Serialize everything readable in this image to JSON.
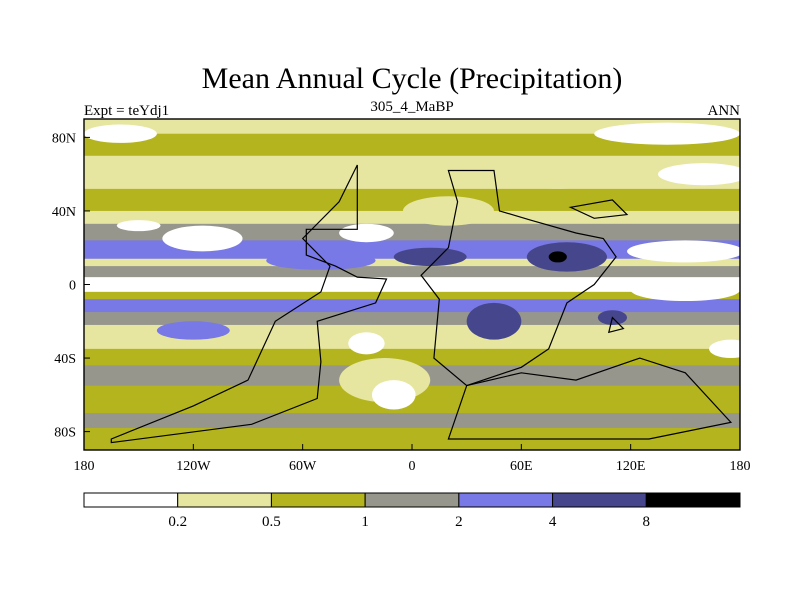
{
  "chart_data": {
    "type": "heatmap",
    "title": "Mean Annual Cycle (Precipitation)",
    "left_label": "Expt = teYdj1",
    "center_label": "305_4_MaBP",
    "right_label": "ANN",
    "x_ticks": [
      {
        "value": -180,
        "label": "180"
      },
      {
        "value": -120,
        "label": "120W"
      },
      {
        "value": -60,
        "label": "60W"
      },
      {
        "value": 0,
        "label": "0"
      },
      {
        "value": 60,
        "label": "60E"
      },
      {
        "value": 120,
        "label": "120E"
      },
      {
        "value": 180,
        "label": "180"
      }
    ],
    "y_ticks": [
      {
        "value": 80,
        "label": "80N"
      },
      {
        "value": 40,
        "label": "40N"
      },
      {
        "value": 0,
        "label": "0"
      },
      {
        "value": -40,
        "label": "40S"
      },
      {
        "value": -80,
        "label": "80S"
      }
    ],
    "xlim": [
      -180,
      180
    ],
    "ylim": [
      -90,
      90
    ],
    "levels": [
      0.2,
      0.5,
      1,
      2,
      4,
      8
    ],
    "colors": [
      "#ffffff",
      "#e6e6a0",
      "#b4b41e",
      "#96968c",
      "#7878e6",
      "#46468c",
      "#000000"
    ],
    "border_color": "#000000",
    "zonal_bands": [
      {
        "lat_top": 90,
        "lat_bottom": 82,
        "class": 1
      },
      {
        "lat_top": 82,
        "lat_bottom": 70,
        "class": 2
      },
      {
        "lat_top": 70,
        "lat_bottom": 52,
        "class": 1
      },
      {
        "lat_top": 52,
        "lat_bottom": 40,
        "class": 2
      },
      {
        "lat_top": 40,
        "lat_bottom": 33,
        "class": 1
      },
      {
        "lat_top": 33,
        "lat_bottom": 24,
        "class": 3
      },
      {
        "lat_top": 24,
        "lat_bottom": 14,
        "class": 4
      },
      {
        "lat_top": 14,
        "lat_bottom": 10,
        "class": 1
      },
      {
        "lat_top": 10,
        "lat_bottom": 4,
        "class": 3
      },
      {
        "lat_top": 4,
        "lat_bottom": -4,
        "class": 0
      },
      {
        "lat_top": -4,
        "lat_bottom": -8,
        "class": 2
      },
      {
        "lat_top": -8,
        "lat_bottom": -15,
        "class": 4
      },
      {
        "lat_top": -15,
        "lat_bottom": -22,
        "class": 3
      },
      {
        "lat_top": -22,
        "lat_bottom": -35,
        "class": 1
      },
      {
        "lat_top": -35,
        "lat_bottom": -44,
        "class": 2
      },
      {
        "lat_top": -44,
        "lat_bottom": -55,
        "class": 3
      },
      {
        "lat_top": -55,
        "lat_bottom": -70,
        "class": 2
      },
      {
        "lat_top": -70,
        "lat_bottom": -78,
        "class": 3
      },
      {
        "lat_top": -78,
        "lat_bottom": -90,
        "class": 2
      }
    ],
    "features": [
      {
        "lon": 140,
        "lat": 82,
        "rlon": 40,
        "rlat": 6,
        "class": 0
      },
      {
        "lon": -160,
        "lat": 82,
        "rlon": 20,
        "rlat": 5,
        "class": 0
      },
      {
        "lon": 160,
        "lat": 60,
        "rlon": 25,
        "rlat": 6,
        "class": 0
      },
      {
        "lon": -150,
        "lat": 32,
        "rlon": 12,
        "rlat": 3,
        "class": 0
      },
      {
        "lon": -115,
        "lat": 25,
        "rlon": 22,
        "rlat": 7,
        "class": 0
      },
      {
        "lon": -25,
        "lat": 28,
        "rlon": 15,
        "rlat": 5,
        "class": 0
      },
      {
        "lon": 150,
        "lat": 18,
        "rlon": 32,
        "rlat": 6,
        "class": 0
      },
      {
        "lon": 150,
        "lat": -3,
        "rlon": 30,
        "rlat": 6,
        "class": 0
      },
      {
        "lon": -50,
        "lat": 13,
        "rlon": 30,
        "rlat": 5,
        "class": 4
      },
      {
        "lon": 10,
        "lat": 15,
        "rlon": 20,
        "rlat": 5,
        "class": 5
      },
      {
        "lon": 85,
        "lat": 15,
        "rlon": 22,
        "rlat": 8,
        "class": 5
      },
      {
        "lon": 80,
        "lat": 15,
        "rlon": 5,
        "rlat": 3,
        "class": 6
      },
      {
        "lon": 45,
        "lat": -20,
        "rlon": 15,
        "rlat": 10,
        "class": 5
      },
      {
        "lon": 110,
        "lat": -18,
        "rlon": 8,
        "rlat": 4,
        "class": 5
      },
      {
        "lon": -120,
        "lat": -25,
        "rlon": 20,
        "rlat": 5,
        "class": 4
      },
      {
        "lon": -15,
        "lat": -52,
        "rlon": 25,
        "rlat": 12,
        "class": 1
      },
      {
        "lon": -10,
        "lat": -60,
        "rlon": 12,
        "rlat": 8,
        "class": 0
      },
      {
        "lon": -25,
        "lat": -32,
        "rlon": 10,
        "rlat": 6,
        "class": 0
      },
      {
        "lon": 20,
        "lat": 40,
        "rlon": 25,
        "rlat": 8,
        "class": 1
      },
      {
        "lon": 175,
        "lat": -35,
        "rlon": 12,
        "rlat": 5,
        "class": 0
      },
      {
        "lon": 80,
        "lat": 60,
        "rlon": 25,
        "rlat": 8,
        "class": 1
      }
    ],
    "continents": [
      [
        [
          -30,
          65
        ],
        [
          -30,
          30
        ],
        [
          -58,
          30
        ],
        [
          -58,
          16
        ],
        [
          -42,
          10
        ],
        [
          -30,
          4
        ],
        [
          -14,
          3
        ],
        [
          -20,
          -10
        ],
        [
          -52,
          -20
        ],
        [
          -50,
          -42
        ],
        [
          -52,
          -62
        ],
        [
          -88,
          -76
        ],
        [
          -165,
          -86
        ],
        [
          -165,
          -84
        ],
        [
          -120,
          -66
        ],
        [
          -90,
          -52
        ],
        [
          -75,
          -20
        ],
        [
          -50,
          -4
        ],
        [
          -45,
          10
        ],
        [
          -60,
          25
        ],
        [
          -40,
          45
        ],
        [
          -30,
          65
        ]
      ],
      [
        [
          20,
          62
        ],
        [
          45,
          62
        ],
        [
          48,
          40
        ],
        [
          65,
          35
        ],
        [
          90,
          28
        ],
        [
          105,
          25
        ],
        [
          112,
          15
        ],
        [
          100,
          0
        ],
        [
          85,
          -10
        ],
        [
          75,
          -35
        ],
        [
          60,
          -45
        ],
        [
          30,
          -55
        ],
        [
          12,
          -40
        ],
        [
          15,
          -8
        ],
        [
          5,
          5
        ],
        [
          20,
          20
        ],
        [
          25,
          45
        ],
        [
          20,
          62
        ]
      ],
      [
        [
          30,
          -55
        ],
        [
          60,
          -48
        ],
        [
          90,
          -52
        ],
        [
          125,
          -40
        ],
        [
          150,
          -48
        ],
        [
          175,
          -75
        ],
        [
          130,
          -84
        ],
        [
          20,
          -84
        ],
        [
          30,
          -55
        ]
      ],
      [
        [
          87,
          42
        ],
        [
          110,
          46
        ],
        [
          118,
          38
        ],
        [
          100,
          36
        ],
        [
          87,
          42
        ]
      ],
      [
        [
          110,
          -18
        ],
        [
          116,
          -24
        ],
        [
          108,
          -26
        ],
        [
          110,
          -18
        ]
      ]
    ]
  }
}
